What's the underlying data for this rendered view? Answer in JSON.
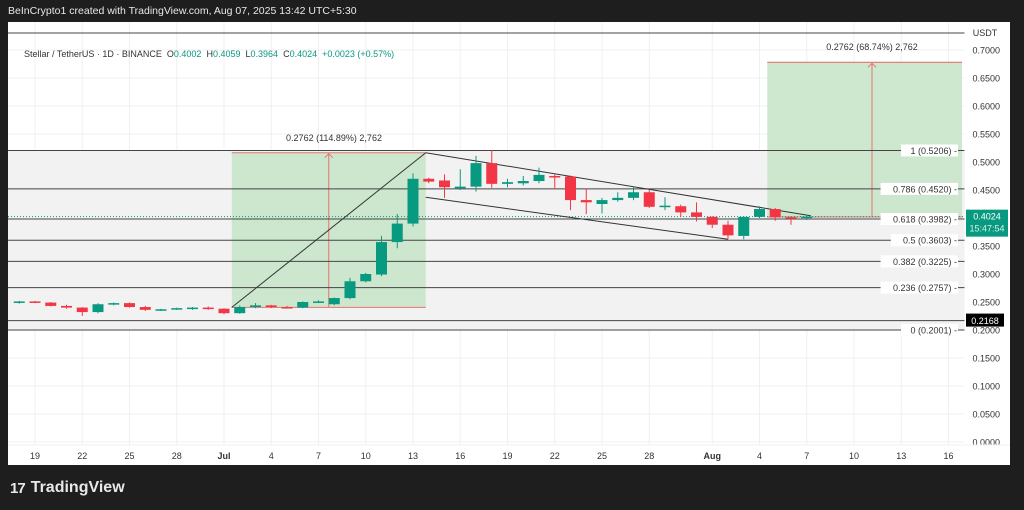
{
  "header": {
    "attribution": "BeInCrypto1 created with TradingView.com, Aug 07, 2025 13:42 UTC+5:30"
  },
  "legend": {
    "symbol": "Stellar / TetherUS · 1D · BINANCE",
    "o_label": "O",
    "o_value": "0.4002",
    "h_label": "H",
    "h_value": "0.4059",
    "l_label": "L",
    "l_value": "0.3964",
    "c_label": "C",
    "c_value": "0.4024",
    "change": "+0.0023 (+0.57%)"
  },
  "footer": {
    "brand": "TradingView",
    "brand_mark": "17"
  },
  "colors": {
    "up": "#089981",
    "down": "#f23645",
    "measure_fill": "#c8e6c9",
    "measure_line": "#e57373",
    "price_tag": "#089981",
    "crosshair_tag": "#000000"
  },
  "chart_data": {
    "type": "candlestick",
    "title": "Stellar / TetherUS · 1D · BINANCE",
    "ylabel": "USDT",
    "ylim": [
      0.0,
      0.7
    ],
    "y_ticks": [
      "0.7000",
      "0.6500",
      "0.6000",
      "0.5500",
      "0.5000",
      "0.4500",
      "0.4000",
      "0.3500",
      "0.3000",
      "0.2500",
      "0.2000",
      "0.1500",
      "0.1000",
      "0.0500",
      "0.0000"
    ],
    "x_ticks": [
      "19",
      "22",
      "25",
      "28",
      "Jul",
      "4",
      "7",
      "10",
      "13",
      "16",
      "19",
      "22",
      "25",
      "28",
      "Aug",
      "4",
      "7",
      "10",
      "13",
      "16"
    ],
    "last_price": "0.4024",
    "countdown": "15:47:54",
    "crosshair_price": "0.2168",
    "fib_levels": [
      {
        "label": "1 (0.5206)",
        "ratio": 1,
        "price": 0.5206
      },
      {
        "label": "0.786 (0.4520)",
        "ratio": 0.786,
        "price": 0.452
      },
      {
        "label": "0.618 (0.3982)",
        "ratio": 0.618,
        "price": 0.3982
      },
      {
        "label": "0.5 (0.3603)",
        "ratio": 0.5,
        "price": 0.3603
      },
      {
        "label": "0.382 (0.3225)",
        "ratio": 0.382,
        "price": 0.3225
      },
      {
        "label": "0.236 (0.2757)",
        "ratio": 0.236,
        "price": 0.2757
      },
      {
        "label": "0 (0.2001)",
        "ratio": 0,
        "price": 0.2001
      }
    ],
    "measures": [
      {
        "label": "0.2762 (114.89%) 2,762",
        "from_price": 0.2404,
        "to_price": 0.5166,
        "start": "Jul 2",
        "end": "Jul 14"
      },
      {
        "label": "0.2762 (68.74%) 2,762",
        "from_price": 0.4018,
        "to_price": 0.678,
        "start": "Aug 5",
        "end": "Aug 16"
      }
    ],
    "candles": [
      {
        "d": "Jun 18",
        "o": 0.25,
        "h": 0.252,
        "l": 0.247,
        "c": 0.251
      },
      {
        "d": "Jun 19",
        "o": 0.251,
        "h": 0.252,
        "l": 0.248,
        "c": 0.249
      },
      {
        "d": "Jun 20",
        "o": 0.249,
        "h": 0.25,
        "l": 0.242,
        "c": 0.243
      },
      {
        "d": "Jun 21",
        "o": 0.243,
        "h": 0.245,
        "l": 0.238,
        "c": 0.24
      },
      {
        "d": "Jun 22",
        "o": 0.24,
        "h": 0.241,
        "l": 0.225,
        "c": 0.232
      },
      {
        "d": "Jun 23",
        "o": 0.232,
        "h": 0.248,
        "l": 0.23,
        "c": 0.246
      },
      {
        "d": "Jun 24",
        "o": 0.246,
        "h": 0.249,
        "l": 0.244,
        "c": 0.248
      },
      {
        "d": "Jun 25",
        "o": 0.248,
        "h": 0.249,
        "l": 0.24,
        "c": 0.241
      },
      {
        "d": "Jun 26",
        "o": 0.241,
        "h": 0.243,
        "l": 0.234,
        "c": 0.236
      },
      {
        "d": "Jun 27",
        "o": 0.236,
        "h": 0.238,
        "l": 0.234,
        "c": 0.237
      },
      {
        "d": "Jun 28",
        "o": 0.237,
        "h": 0.24,
        "l": 0.236,
        "c": 0.239
      },
      {
        "d": "Jun 29",
        "o": 0.239,
        "h": 0.241,
        "l": 0.236,
        "c": 0.24
      },
      {
        "d": "Jun 30",
        "o": 0.24,
        "h": 0.242,
        "l": 0.236,
        "c": 0.238
      },
      {
        "d": "Jul 1",
        "o": 0.238,
        "h": 0.239,
        "l": 0.228,
        "c": 0.23
      },
      {
        "d": "Jul 2",
        "o": 0.23,
        "h": 0.244,
        "l": 0.229,
        "c": 0.241
      },
      {
        "d": "Jul 3",
        "o": 0.241,
        "h": 0.248,
        "l": 0.239,
        "c": 0.244
      },
      {
        "d": "Jul 4",
        "o": 0.244,
        "h": 0.245,
        "l": 0.239,
        "c": 0.241
      },
      {
        "d": "Jul 5",
        "o": 0.241,
        "h": 0.243,
        "l": 0.239,
        "c": 0.24
      },
      {
        "d": "Jul 6",
        "o": 0.24,
        "h": 0.251,
        "l": 0.239,
        "c": 0.25
      },
      {
        "d": "Jul 7",
        "o": 0.25,
        "h": 0.253,
        "l": 0.248,
        "c": 0.251
      },
      {
        "d": "Jul 8",
        "o": 0.246,
        "h": 0.258,
        "l": 0.244,
        "c": 0.257
      },
      {
        "d": "Jul 9",
        "o": 0.257,
        "h": 0.293,
        "l": 0.255,
        "c": 0.287
      },
      {
        "d": "Jul 10",
        "o": 0.287,
        "h": 0.302,
        "l": 0.285,
        "c": 0.3
      },
      {
        "d": "Jul 11",
        "o": 0.299,
        "h": 0.368,
        "l": 0.296,
        "c": 0.357
      },
      {
        "d": "Jul 12",
        "o": 0.357,
        "h": 0.407,
        "l": 0.346,
        "c": 0.39
      },
      {
        "d": "Jul 13",
        "o": 0.39,
        "h": 0.48,
        "l": 0.385,
        "c": 0.47
      },
      {
        "d": "Jul 14",
        "o": 0.47,
        "h": 0.472,
        "l": 0.462,
        "c": 0.465
      },
      {
        "d": "Jul 15",
        "o": 0.467,
        "h": 0.478,
        "l": 0.436,
        "c": 0.455
      },
      {
        "d": "Jul 16",
        "o": 0.453,
        "h": 0.487,
        "l": 0.45,
        "c": 0.456
      },
      {
        "d": "Jul 17",
        "o": 0.456,
        "h": 0.511,
        "l": 0.447,
        "c": 0.498
      },
      {
        "d": "Jul 18",
        "o": 0.498,
        "h": 0.521,
        "l": 0.454,
        "c": 0.461
      },
      {
        "d": "Jul 19",
        "o": 0.461,
        "h": 0.47,
        "l": 0.455,
        "c": 0.464
      },
      {
        "d": "Jul 20",
        "o": 0.462,
        "h": 0.475,
        "l": 0.458,
        "c": 0.466
      },
      {
        "d": "Jul 21",
        "o": 0.466,
        "h": 0.49,
        "l": 0.462,
        "c": 0.477
      },
      {
        "d": "Jul 22",
        "o": 0.475,
        "h": 0.479,
        "l": 0.451,
        "c": 0.474
      },
      {
        "d": "Jul 23",
        "o": 0.474,
        "h": 0.476,
        "l": 0.414,
        "c": 0.432
      },
      {
        "d": "Jul 24",
        "o": 0.432,
        "h": 0.453,
        "l": 0.407,
        "c": 0.428
      },
      {
        "d": "Jul 25",
        "o": 0.425,
        "h": 0.436,
        "l": 0.408,
        "c": 0.432
      },
      {
        "d": "Jul 26",
        "o": 0.432,
        "h": 0.446,
        "l": 0.429,
        "c": 0.436
      },
      {
        "d": "Jul 27",
        "o": 0.436,
        "h": 0.456,
        "l": 0.432,
        "c": 0.446
      },
      {
        "d": "Jul 28",
        "o": 0.446,
        "h": 0.45,
        "l": 0.418,
        "c": 0.42
      },
      {
        "d": "Jul 29",
        "o": 0.42,
        "h": 0.437,
        "l": 0.414,
        "c": 0.422
      },
      {
        "d": "Jul 30",
        "o": 0.421,
        "h": 0.424,
        "l": 0.402,
        "c": 0.41
      },
      {
        "d": "Jul 31",
        "o": 0.41,
        "h": 0.428,
        "l": 0.394,
        "c": 0.402
      },
      {
        "d": "Aug 1",
        "o": 0.402,
        "h": 0.403,
        "l": 0.382,
        "c": 0.388
      },
      {
        "d": "Aug 2",
        "o": 0.388,
        "h": 0.395,
        "l": 0.362,
        "c": 0.369
      },
      {
        "d": "Aug 3",
        "o": 0.368,
        "h": 0.403,
        "l": 0.362,
        "c": 0.402
      },
      {
        "d": "Aug 4",
        "o": 0.402,
        "h": 0.421,
        "l": 0.4,
        "c": 0.416
      },
      {
        "d": "Aug 5",
        "o": 0.416,
        "h": 0.418,
        "l": 0.395,
        "c": 0.401
      },
      {
        "d": "Aug 6",
        "o": 0.401,
        "h": 0.403,
        "l": 0.388,
        "c": 0.4
      },
      {
        "d": "Aug 7",
        "o": 0.4002,
        "h": 0.4059,
        "l": 0.3964,
        "c": 0.4024
      }
    ]
  }
}
